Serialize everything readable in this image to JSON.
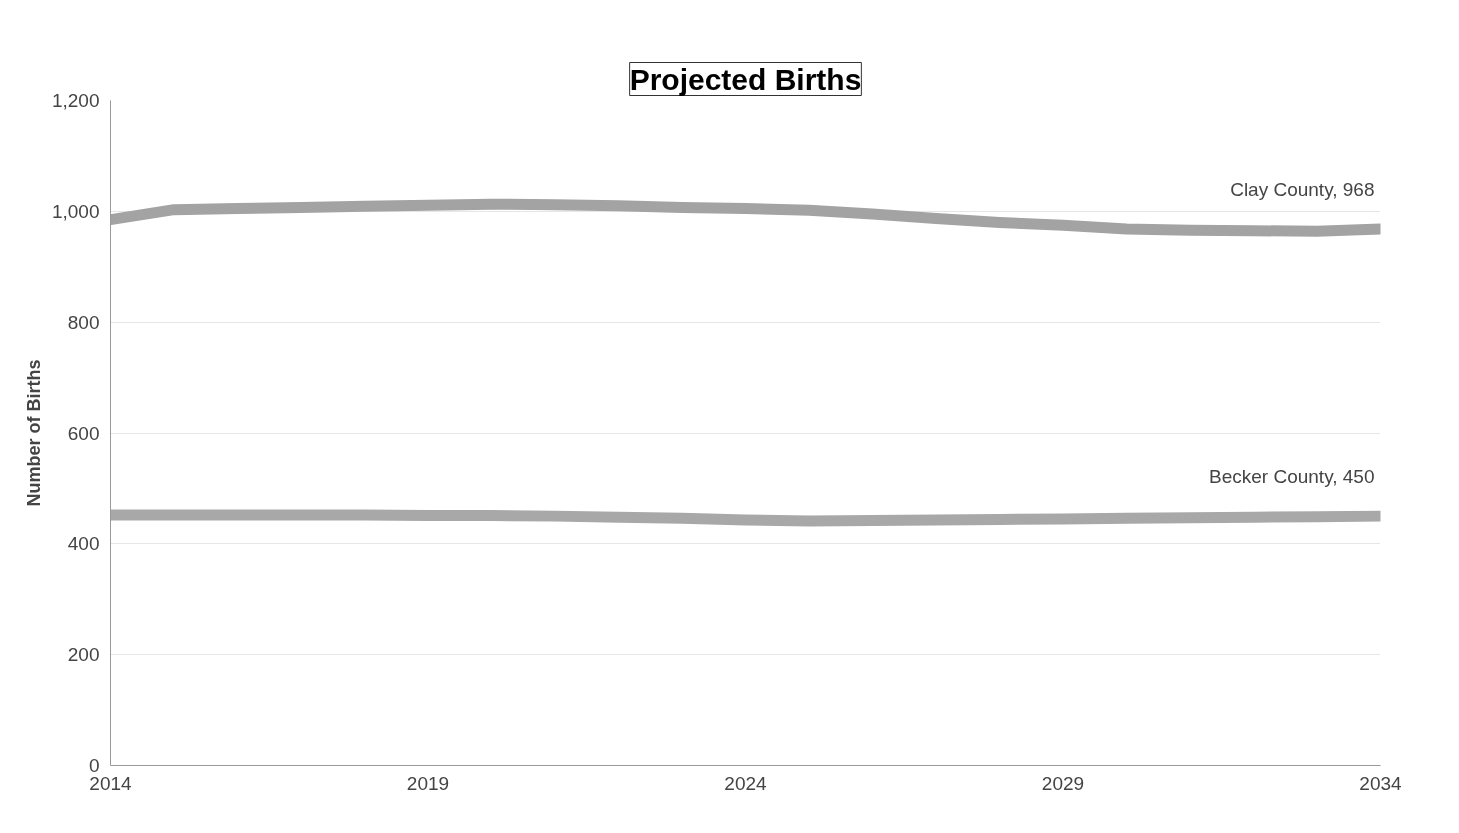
{
  "chart_data": {
    "type": "line",
    "title": "Projected Births",
    "ylabel": "Number of Births",
    "x": [
      2014,
      2015,
      2016,
      2017,
      2018,
      2019,
      2020,
      2021,
      2022,
      2023,
      2024,
      2025,
      2026,
      2027,
      2028,
      2029,
      2030,
      2031,
      2032,
      2033,
      2034
    ],
    "series": [
      {
        "color": "#a3a3a3",
        "values": [
          985,
          1003,
          1005,
          1007,
          1009,
          1011,
          1013,
          1012,
          1010,
          1007,
          1005,
          1002,
          995,
          987,
          980,
          975,
          968,
          966,
          965,
          964,
          968
        ]
      },
      {
        "color": "#a8a8a8",
        "values": [
          452,
          452,
          452,
          452,
          452,
          451,
          451,
          450,
          448,
          446,
          443,
          441,
          442,
          443,
          444,
          445,
          446,
          447,
          448,
          449,
          450
        ]
      }
    ],
    "annotations": [
      {
        "text": "Clay County, 968",
        "x": 2034,
        "y": 968
      },
      {
        "text": "Becker County, 450",
        "x": 2034,
        "y": 450
      }
    ],
    "xlim": [
      2014,
      2034
    ],
    "xticks": [
      2014,
      2019,
      2024,
      2029,
      2034
    ],
    "ylim": [
      0,
      1200
    ],
    "yticks": [
      {
        "value": 0,
        "label": "0"
      },
      {
        "value": 200,
        "label": "200"
      },
      {
        "value": 400,
        "label": "400"
      },
      {
        "value": 600,
        "label": "600"
      },
      {
        "value": 800,
        "label": "800"
      },
      {
        "value": 1000,
        "label": "1,000"
      },
      {
        "value": 1200,
        "label": "1,200"
      }
    ],
    "grid": "y",
    "line_style": "solid",
    "marker": "none"
  }
}
